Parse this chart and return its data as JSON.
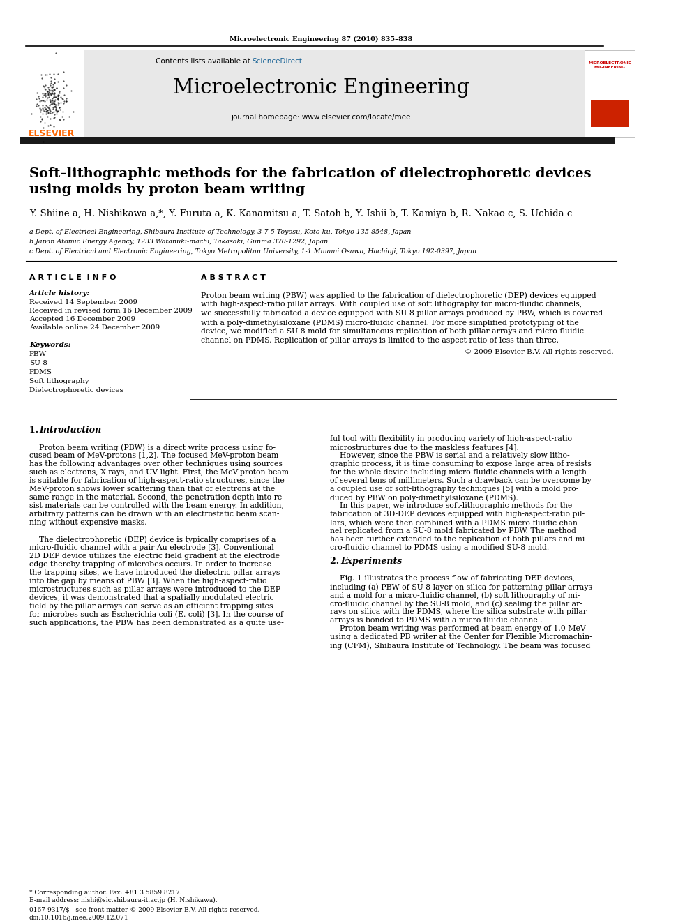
{
  "page_bg": "#ffffff",
  "top_journal_line": "Microelectronic Engineering 87 (2010) 835–838",
  "journal_name": "Microelectronic Engineering",
  "contents_line_prefix": "Contents lists available at ",
  "contents_line_link": "ScienceDirect",
  "journal_homepage": "journal homepage: www.elsevier.com/locate/mee",
  "header_bg": "#e8e8e8",
  "title_line1": "Soft–lithographic methods for the fabrication of dielectrophoretic devices",
  "title_line2": "using molds by proton beam writing",
  "authors": "Y. Shiine a, H. Nishikawa a,*, Y. Furuta a, K. Kanamitsu a, T. Satoh b, Y. Ishii b, T. Kamiya b, R. Nakao c, S. Uchida c",
  "affil_a": "a Dept. of Electrical Engineering, Shibaura Institute of Technology, 3-7-5 Toyosu, Koto-ku, Tokyo 135-8548, Japan",
  "affil_b": "b Japan Atomic Energy Agency, 1233 Watanuki-machi, Takasaki, Gunma 370-1292, Japan",
  "affil_c": "c Dept. of Electrical and Electronic Engineering, Tokyo Metropolitan University, 1-1 Minami Osawa, Hachioji, Tokyo 192-0397, Japan",
  "section_article_info": "A R T I C L E  I N F O",
  "section_abstract": "A B S T R A C T",
  "article_history_label": "Article history:",
  "received": "Received 14 September 2009",
  "received_revised": "Received in revised form 16 December 2009",
  "accepted": "Accepted 16 December 2009",
  "available": "Available online 24 December 2009",
  "keywords_label": "Keywords:",
  "keywords": [
    "PBW",
    "SU-8",
    "PDMS",
    "Soft lithography",
    "Dielectrophoretic devices"
  ],
  "abstract_lines": [
    "Proton beam writing (PBW) was applied to the fabrication of dielectrophoretic (DEP) devices equipped",
    "with high-aspect-ratio pillar arrays. With coupled use of soft lithography for micro-fluidic channels,",
    "we successfully fabricated a device equipped with SU-8 pillar arrays produced by PBW, which is covered",
    "with a poly-dimethylsiloxane (PDMS) micro-fluidic channel. For more simplified prototyping of the",
    "device, we modified a SU-8 mold for simultaneous replication of both pillar arrays and micro-fluidic",
    "channel on PDMS. Replication of pillar arrays is limited to the aspect ratio of less than three."
  ],
  "copyright": "© 2009 Elsevier B.V. All rights reserved.",
  "col1_lines": [
    "",
    "    Proton beam writing (PBW) is a direct write process using fo-",
    "cused beam of MeV-protons [1,2]. The focused MeV-proton beam",
    "has the following advantages over other techniques using sources",
    "such as electrons, X-rays, and UV light. First, the MeV-proton beam",
    "is suitable for fabrication of high-aspect-ratio structures, since the",
    "MeV-proton shows lower scattering than that of electrons at the",
    "same range in the material. Second, the penetration depth into re-",
    "sist materials can be controlled with the beam energy. In addition,",
    "arbitrary patterns can be drawn with an electrostatic beam scan-",
    "ning without expensive masks.",
    "",
    "    The dielectrophoretic (DEP) device is typically comprises of a",
    "micro-fluidic channel with a pair Au electrode [3]. Conventional",
    "2D DEP device utilizes the electric field gradient at the electrode",
    "edge thereby trapping of microbes occurs. In order to increase",
    "the trapping sites, we have introduced the dielectric pillar arrays",
    "into the gap by means of PBW [3]. When the high-aspect-ratio",
    "microstructures such as pillar arrays were introduced to the DEP",
    "devices, it was demonstrated that a spatially modulated electric",
    "field by the pillar arrays can serve as an efficient trapping sites",
    "for microbes such as Escherichia coli (E. coli) [3]. In the course of",
    "such applications, the PBW has been demonstrated as a quite use-"
  ],
  "col2_lines": [
    "ful tool with flexibility in producing variety of high-aspect-ratio",
    "microstructures due to the maskless features [4].",
    "    However, since the PBW is serial and a relatively slow litho-",
    "graphic process, it is time consuming to expose large area of resists",
    "for the whole device including micro-fluidic channels with a length",
    "of several tens of millimeters. Such a drawback can be overcome by",
    "a coupled use of soft-lithography techniques [5] with a mold pro-",
    "duced by PBW on poly-dimethylsiloxane (PDMS).",
    "    In this paper, we introduce soft-lithographic methods for the",
    "fabrication of 3D-DEP devices equipped with high-aspect-ratio pil-",
    "lars, which were then combined with a PDMS micro-fluidic chan-",
    "nel replicated from a SU-8 mold fabricated by PBW. The method",
    "has been further extended to the replication of both pillars and mi-",
    "cro-fluidic channel to PDMS using a modified SU-8 mold."
  ],
  "sec2_lines": [
    "",
    "    Fig. 1 illustrates the process flow of fabricating DEP devices,",
    "including (a) PBW of SU-8 layer on silica for patterning pillar arrays",
    "and a mold for a micro-fluidic channel, (b) soft lithography of mi-",
    "cro-fluidic channel by the SU-8 mold, and (c) sealing the pillar ar-",
    "rays on silica with the PDMS, where the silica substrate with pillar",
    "arrays is bonded to PDMS with a micro-fluidic channel.",
    "    Proton beam writing was performed at beam energy of 1.0 MeV",
    "using a dedicated PB writer at the Center for Flexible Micromachin-",
    "ing (CFM), Shibaura Institute of Technology. The beam was focused"
  ],
  "footnote_star": "* Corresponding author. Fax: +81 3 5859 8217.",
  "footnote_email": "E-mail address: nishi@sic.shibaura-it.ac.jp (H. Nishikawa).",
  "footnote_issn": "0167-9317/$ - see front matter © 2009 Elsevier B.V. All rights reserved.",
  "footnote_doi": "doi:10.1016/j.mee.2009.12.071",
  "elsevier_color": "#FF6600",
  "sciencedirect_color": "#1a6496",
  "bar_color": "#1a1a1a",
  "header_line_color": "#000000",
  "body_text_size": 7.8,
  "small_text_size": 6.5,
  "affil_text_size": 6.8
}
